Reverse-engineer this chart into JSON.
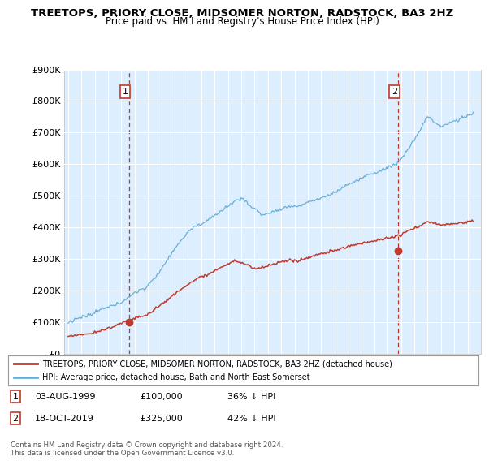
{
  "title": "TREETOPS, PRIORY CLOSE, MIDSOMER NORTON, RADSTOCK, BA3 2HZ",
  "subtitle": "Price paid vs. HM Land Registry's House Price Index (HPI)",
  "ylim": [
    0,
    900000
  ],
  "yticks": [
    0,
    100000,
    200000,
    300000,
    400000,
    500000,
    600000,
    700000,
    800000,
    900000
  ],
  "ytick_labels": [
    "£0",
    "£100K",
    "£200K",
    "£300K",
    "£400K",
    "£500K",
    "£600K",
    "£700K",
    "£800K",
    "£900K"
  ],
  "hpi_color": "#6aaed6",
  "price_color": "#c0392b",
  "vline_color": "#c0392b",
  "plot_bg_color": "#ddeeff",
  "background_color": "#ffffff",
  "grid_color": "#ffffff",
  "sale1_year": 1999.58,
  "sale1_price": 100000,
  "sale2_year": 2019.79,
  "sale2_price": 325000,
  "legend_line1": "TREETOPS, PRIORY CLOSE, MIDSOMER NORTON, RADSTOCK, BA3 2HZ (detached house)",
  "legend_line2": "HPI: Average price, detached house, Bath and North East Somerset",
  "footer": "Contains HM Land Registry data © Crown copyright and database right 2024.\nThis data is licensed under the Open Government Licence v3.0.",
  "title_fontsize": 9.5,
  "subtitle_fontsize": 8.5
}
